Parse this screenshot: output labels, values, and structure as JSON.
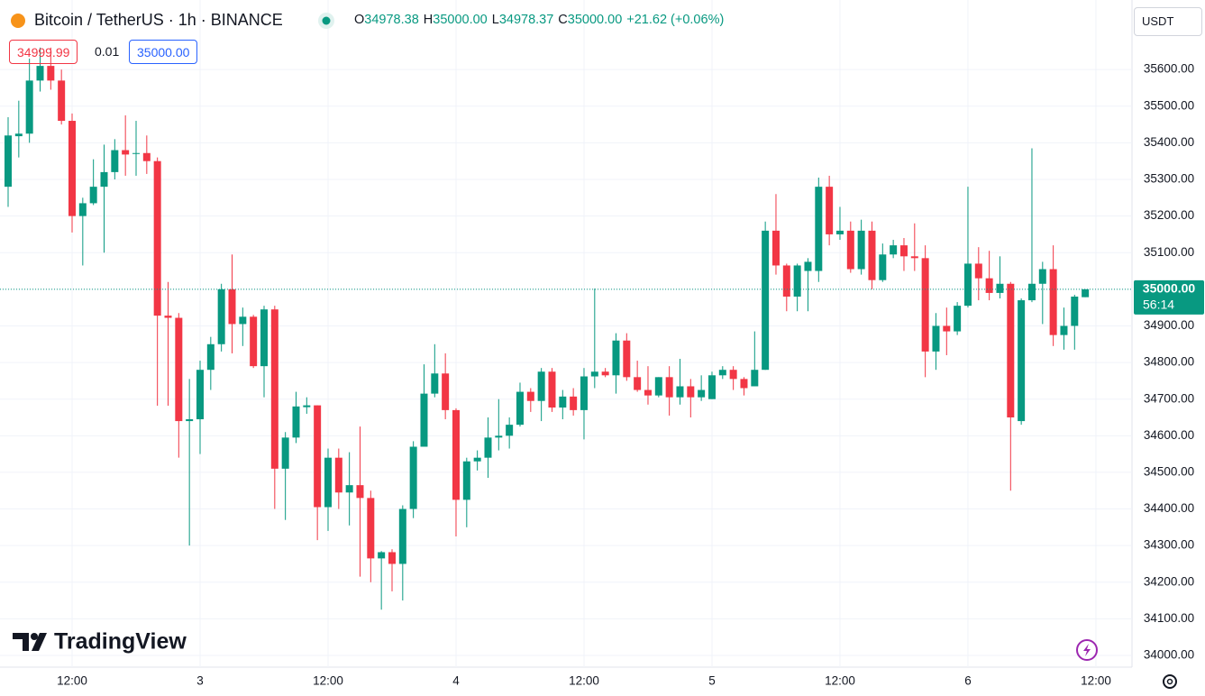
{
  "toolbar": {
    "symbol": "Bitcoin / TetherUS · 1h · BINANCE",
    "ohlc": [
      {
        "key": "O",
        "value": "34978.38"
      },
      {
        "key": "H",
        "value": "35000.00"
      },
      {
        "key": "L",
        "value": "34978.37"
      },
      {
        "key": "C",
        "value": "35000.00"
      }
    ],
    "change": "+21.62 (+0.06%)",
    "bid": "34999.99",
    "spread": "0.01",
    "ask": "35000.00",
    "currency": "USDT",
    "logo": "TradingView"
  },
  "chart_data": {
    "type": "candlestick",
    "categories": [
      null,
      null,
      null,
      null,
      null,
      null,
      "12:00",
      null,
      null,
      null,
      null,
      null,
      null,
      null,
      null,
      null,
      null,
      null,
      "3",
      null,
      null,
      null,
      null,
      null,
      null,
      null,
      null,
      null,
      null,
      null,
      "12:00",
      null,
      null,
      null,
      null,
      null,
      null,
      null,
      null,
      null,
      null,
      null,
      "4",
      null,
      null,
      null,
      null,
      null,
      null,
      null,
      null,
      null,
      null,
      null,
      "12:00",
      null,
      null,
      null,
      null,
      null,
      null,
      null,
      null,
      null,
      null,
      null,
      "5",
      null,
      null,
      null,
      null,
      null,
      null,
      null,
      null,
      null,
      null,
      null,
      "12:00",
      null,
      null,
      null,
      null,
      null,
      null,
      null,
      null,
      null,
      null,
      null,
      "6",
      null,
      null,
      null,
      null,
      null,
      null,
      null,
      null,
      null,
      null,
      null,
      "12:00"
    ],
    "open": [
      35280,
      35418,
      35425,
      35570,
      35610,
      35570,
      35460,
      35200,
      35235,
      35280,
      35320,
      35380,
      35370,
      35372,
      35350,
      34928,
      34922,
      34640,
      34645,
      34780,
      34850,
      35000,
      34905,
      34925,
      34790,
      34945,
      34510,
      34595,
      34678,
      34683,
      34405,
      34540,
      34445,
      34465,
      34430,
      34265,
      34282,
      34250,
      34400,
      34570,
      34715,
      34770,
      34670,
      34425,
      34530,
      34540,
      34595,
      34600,
      34630,
      34720,
      34695,
      34775,
      34677,
      34707,
      34670,
      34762,
      34775,
      34765,
      34860,
      34760,
      34725,
      34710,
      34760,
      34705,
      34735,
      34705,
      34700,
      34765,
      34780,
      34755,
      34735,
      34780,
      35160,
      35065,
      34980,
      35050,
      35050,
      35280,
      35150,
      35160,
      35055,
      35160,
      35025,
      35095,
      35120,
      35090,
      35085,
      34830,
      34900,
      34885,
      34955,
      35070,
      35030,
      34990,
      35015,
      34640,
      34970,
      35015,
      35055,
      34875,
      34900,
      34978.38,
      null
    ],
    "high": [
      35470,
      35515,
      35630,
      35660,
      35660,
      35600,
      35480,
      35250,
      35355,
      35395,
      35410,
      35475,
      35460,
      35420,
      35360,
      35020,
      34935,
      34755,
      34805,
      34870,
      35015,
      35095,
      34950,
      34930,
      34955,
      34955,
      34610,
      34720,
      34705,
      34683,
      34565,
      34565,
      34555,
      34625,
      34450,
      34285,
      34290,
      34410,
      34585,
      34795,
      34850,
      34825,
      34675,
      34540,
      34560,
      34650,
      34700,
      34650,
      34745,
      34730,
      34785,
      34785,
      34725,
      34730,
      34785,
      35002,
      34785,
      34880,
      34880,
      34805,
      34790,
      34760,
      34790,
      34810,
      34755,
      34765,
      34775,
      34790,
      34790,
      34760,
      34885,
      35185,
      35260,
      35070,
      35070,
      35085,
      35305,
      35310,
      35225,
      35185,
      35190,
      35185,
      35125,
      35135,
      35140,
      35180,
      35120,
      34935,
      34950,
      34965,
      35280,
      35115,
      35105,
      35090,
      35020,
      34975,
      35385,
      35075,
      35120,
      34950,
      34985,
      35000,
      null
    ],
    "low": [
      35225,
      35360,
      35400,
      35540,
      35545,
      35450,
      35155,
      35065,
      35230,
      35100,
      35300,
      35310,
      35310,
      35315,
      34682,
      34682,
      34540,
      34300,
      34550,
      34725,
      34830,
      34825,
      34845,
      34785,
      34705,
      34400,
      34370,
      34580,
      34660,
      34315,
      34340,
      34400,
      34355,
      34215,
      34200,
      34125,
      34175,
      34150,
      34375,
      34570,
      34705,
      34645,
      34325,
      34350,
      34505,
      34485,
      34560,
      34565,
      34625,
      34665,
      34640,
      34665,
      34645,
      34655,
      34590,
      34730,
      34760,
      34715,
      34750,
      34720,
      34685,
      34705,
      34655,
      34685,
      34650,
      34695,
      34700,
      34755,
      34725,
      34710,
      34735,
      34780,
      35040,
      34940,
      34940,
      34940,
      35020,
      35120,
      35135,
      35045,
      35040,
      35000,
      35020,
      35085,
      35050,
      35050,
      34760,
      34780,
      34820,
      34875,
      34950,
      34970,
      34970,
      34975,
      34450,
      34630,
      34965,
      34905,
      34845,
      34835,
      34835,
      34978.37,
      null
    ],
    "close": [
      35420,
      35425,
      35570,
      35610,
      35570,
      35460,
      35200,
      35235,
      35280,
      35320,
      35380,
      35368,
      35372,
      35350,
      34928,
      34922,
      34640,
      34645,
      34780,
      34850,
      35000,
      34905,
      34925,
      34790,
      34945,
      34510,
      34595,
      34680,
      34683,
      34405,
      34540,
      34445,
      34465,
      34430,
      34265,
      34282,
      34250,
      34400,
      34570,
      34715,
      34770,
      34670,
      34425,
      34530,
      34540,
      34595,
      34600,
      34630,
      34720,
      34695,
      34775,
      34677,
      34707,
      34670,
      34762,
      34775,
      34765,
      34860,
      34760,
      34725,
      34710,
      34760,
      34705,
      34735,
      34705,
      34725,
      34765,
      34780,
      34755,
      34730,
      34780,
      35160,
      35065,
      34980,
      35065,
      35075,
      35280,
      35150,
      35160,
      35055,
      35160,
      35025,
      35095,
      35120,
      35090,
      35085,
      34830,
      34900,
      34885,
      34955,
      35070,
      35030,
      34990,
      35015,
      34650,
      34970,
      35015,
      35055,
      34875,
      34900,
      34980,
      35000,
      null
    ],
    "up_color": "#089981",
    "down_color": "#f23645",
    "ylim": [
      33968,
      35790
    ],
    "yticks": [
      {
        "value": 34000,
        "label": "34000.00"
      },
      {
        "value": 34100,
        "label": "34100.00"
      },
      {
        "value": 34200,
        "label": "34200.00"
      },
      {
        "value": 34300,
        "label": "34300.00"
      },
      {
        "value": 34400,
        "label": "34400.00"
      },
      {
        "value": 34500,
        "label": "34500.00"
      },
      {
        "value": 34600,
        "label": "34600.00"
      },
      {
        "value": 34700,
        "label": "34700.00"
      },
      {
        "value": 34800,
        "label": "34800.00"
      },
      {
        "value": 34900,
        "label": "34900.00"
      },
      {
        "value": 35000,
        "label": "35000.00"
      },
      {
        "value": 35100,
        "label": "35100.00"
      },
      {
        "value": 35200,
        "label": "35200.00"
      },
      {
        "value": 35300,
        "label": "35300.00"
      },
      {
        "value": 35400,
        "label": "35400.00"
      },
      {
        "value": 35500,
        "label": "35500.00"
      },
      {
        "value": 35600,
        "label": "35600.00"
      }
    ],
    "last_price": {
      "value": 35000,
      "label": "35000.00"
    },
    "countdown": "56:14",
    "grid": true
  }
}
